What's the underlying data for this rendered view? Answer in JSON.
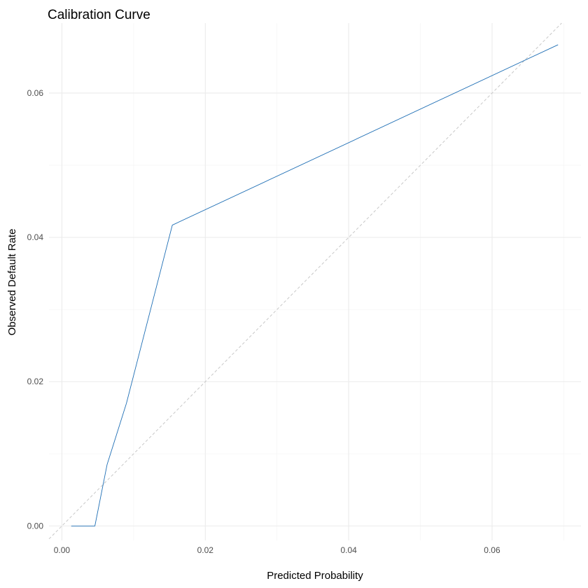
{
  "chart_data": {
    "type": "line",
    "title": "Calibration Curve",
    "xlabel": "Predicted Probability",
    "ylabel": "Observed Default Rate",
    "xlim": [
      -0.0018,
      0.0724
    ],
    "ylim": [
      -0.002,
      0.0697
    ],
    "x_ticks": [
      0.0,
      0.02,
      0.04,
      0.06
    ],
    "x_tick_labels": [
      "0.00",
      "0.02",
      "0.04",
      "0.06"
    ],
    "y_ticks": [
      0.0,
      0.02,
      0.04,
      0.06
    ],
    "y_tick_labels": [
      "0.00",
      "0.02",
      "0.04",
      "0.06"
    ],
    "grid": true,
    "series": [
      {
        "style": "solid",
        "color": "#1f6fb5",
        "x": [
          0.0013,
          0.0046,
          0.0063,
          0.009,
          0.0154,
          0.0692
        ],
        "y": [
          0.0,
          0.0,
          0.0085,
          0.017,
          0.0417,
          0.0667
        ]
      },
      {
        "style": "dashed",
        "color": "#c8c8c8",
        "x": [
          -0.0018,
          0.0697
        ],
        "y": [
          -0.0018,
          0.0697
        ]
      }
    ]
  }
}
